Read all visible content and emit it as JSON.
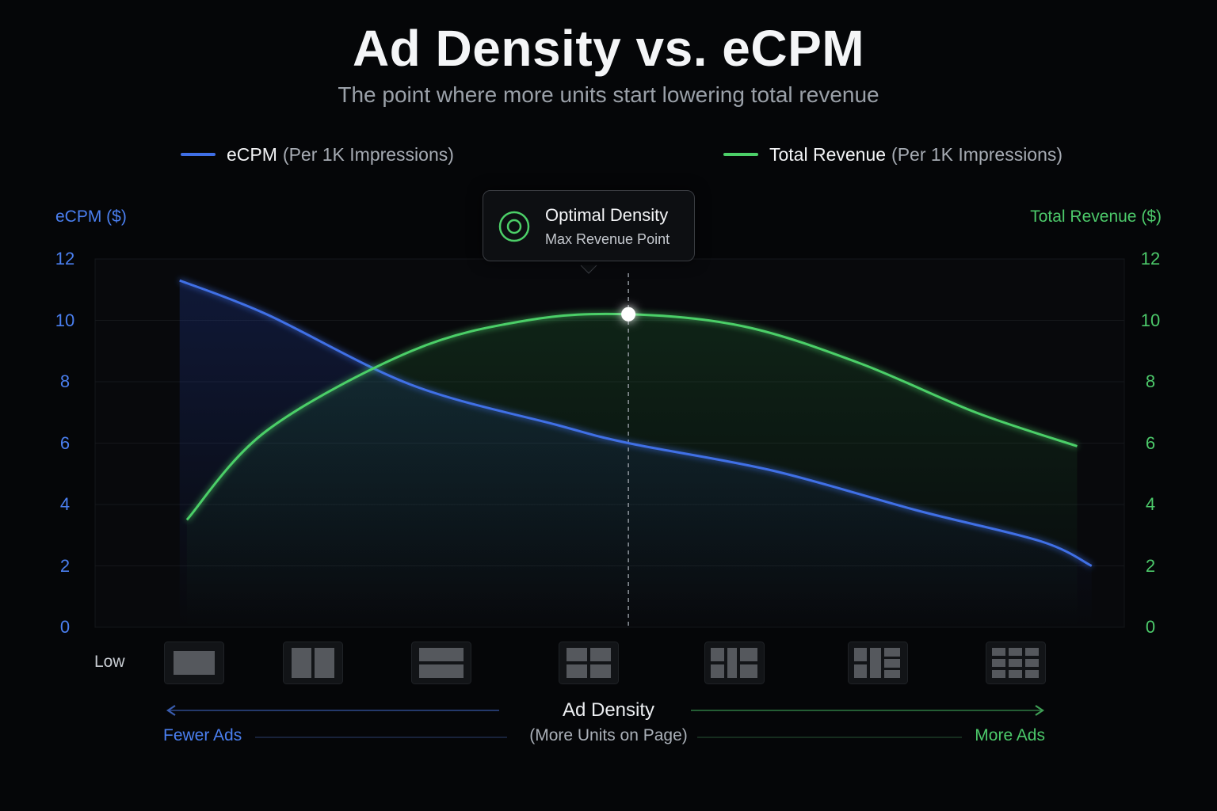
{
  "header": {
    "title": "Ad Density vs. eCPM",
    "subtitle": "The point where more units start lowering total revenue"
  },
  "legend": [
    {
      "name": "eCPM",
      "unit": "(Per 1K Impressions)",
      "color": "#3f6fe6"
    },
    {
      "name": "Total Revenue",
      "unit": "(Per 1K Impressions)",
      "color": "#4ccf68"
    }
  ],
  "annotation": {
    "title": "Optimal Density",
    "subtitle": "Max Revenue Point"
  },
  "x_axis": {
    "low_label": "Low",
    "title": "Ad Density",
    "subtitle": "(More Units on Page)",
    "left_label": "Fewer Ads",
    "right_label": "More Ads",
    "density_icons": [
      "single-ad-icon",
      "two-column-ads-icon",
      "two-row-ads-icon",
      "four-grid-ads-icon",
      "six-grid-ads-icon",
      "mixed-grid-ads-icon",
      "nine-grid-ads-icon"
    ]
  },
  "chart_data": {
    "type": "line",
    "x": [
      0,
      1,
      2,
      3,
      4,
      5,
      6
    ],
    "y_left": {
      "label": "eCPM ($)",
      "range": [
        0,
        12
      ],
      "ticks": [
        "0",
        "2",
        "4",
        "6",
        "8",
        "10",
        "12"
      ]
    },
    "y_right": {
      "label": "Total Revenue ($)",
      "range": [
        0,
        12
      ],
      "ticks": [
        "0",
        "2",
        "4",
        "6",
        "8",
        "10",
        "12"
      ]
    },
    "series": [
      {
        "name": "eCPM",
        "color": "#3f6fe6",
        "x": [
          -0.1,
          0.5,
          1.5,
          2.5,
          3,
          4,
          5,
          5.85,
          6.2
        ],
        "values": [
          11.3,
          10.2,
          7.9,
          6.6,
          6.0,
          5.1,
          3.8,
          2.8,
          2.0
        ]
      },
      {
        "name": "Total Revenue",
        "color": "#4ccf68",
        "x": [
          -0.05,
          0.5,
          1.5,
          2.3,
          3,
          3.8,
          4.6,
          5.4,
          6.1
        ],
        "values": [
          3.5,
          6.4,
          9.0,
          10.0,
          10.2,
          9.8,
          8.6,
          7.0,
          5.9
        ]
      }
    ],
    "optimal_point": {
      "x": 3,
      "y": 10.2
    },
    "grid": true
  }
}
